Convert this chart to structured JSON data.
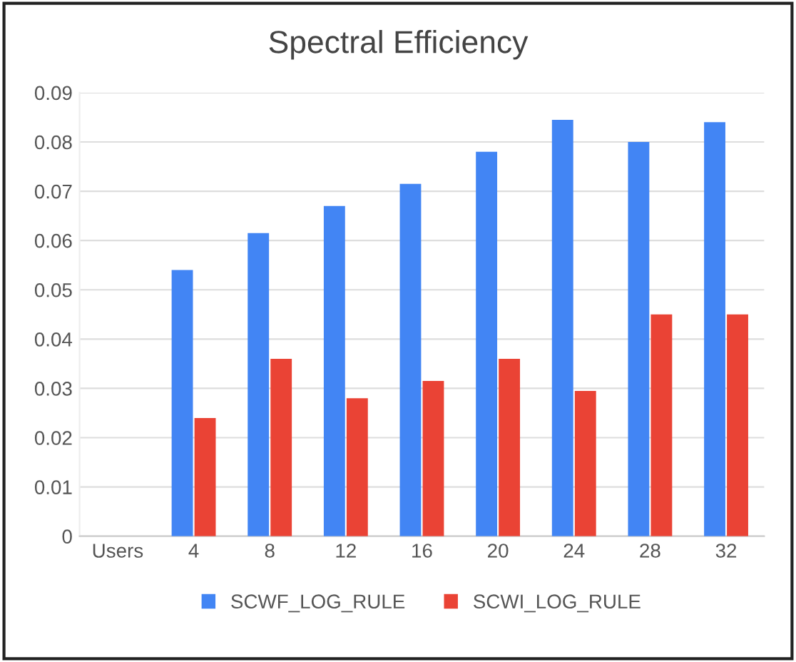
{
  "chart_data": {
    "type": "bar",
    "title": "Spectral Efficiency",
    "categories": [
      "Users",
      "4",
      "8",
      "12",
      "16",
      "20",
      "24",
      "28",
      "32"
    ],
    "series": [
      {
        "name": "SCWF_LOG_RULE",
        "color": "#4285f4",
        "values": [
          null,
          0.054,
          0.0615,
          0.067,
          0.0715,
          0.078,
          0.0845,
          0.08,
          0.084
        ]
      },
      {
        "name": "SCWI_LOG_RULE",
        "color": "#ea4335",
        "values": [
          null,
          0.024,
          0.036,
          0.028,
          0.0315,
          0.036,
          0.0295,
          0.045,
          0.045
        ]
      }
    ],
    "ylim": [
      0,
      0.09
    ],
    "yticks": [
      0,
      0.01,
      0.02,
      0.03,
      0.04,
      0.05,
      0.06,
      0.07,
      0.08,
      0.09
    ],
    "grid": "y",
    "legend": "bottom"
  }
}
